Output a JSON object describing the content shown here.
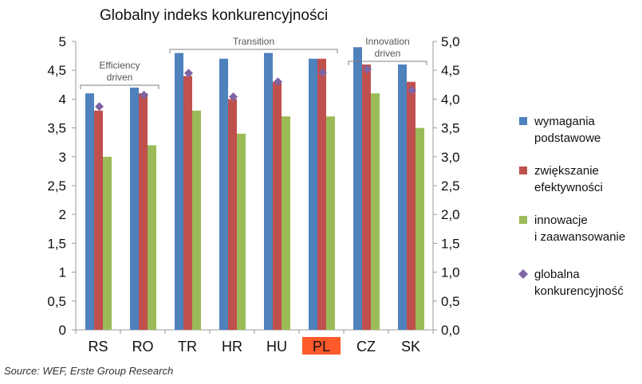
{
  "chart_data": {
    "type": "bar",
    "title": "Globalny indeks konkurencyjności",
    "categories": [
      "RS",
      "RO",
      "TR",
      "HR",
      "HU",
      "PL",
      "CZ",
      "SK"
    ],
    "highlight_category": "PL",
    "highlight_color": "#ff5a2a",
    "series": [
      {
        "name": "wymagania podstawowe",
        "name_lines": [
          "wymagania",
          "podstawowe"
        ],
        "color": "#4f81bd",
        "type": "bar",
        "values": [
          4.1,
          4.2,
          4.8,
          4.7,
          4.8,
          4.7,
          4.9,
          4.6
        ]
      },
      {
        "name": "zwiększanie efektywności",
        "name_lines": [
          "zwiększanie",
          "efektywności"
        ],
        "color": "#c0504d",
        "type": "bar",
        "values": [
          3.8,
          4.1,
          4.4,
          4.0,
          4.3,
          4.7,
          4.6,
          4.3
        ]
      },
      {
        "name": "innowacje i zaawansowanie",
        "name_lines": [
          "innowacje",
          "i zaawansowanie"
        ],
        "color": "#9bbb59",
        "type": "bar",
        "values": [
          3.0,
          3.2,
          3.8,
          3.4,
          3.7,
          3.7,
          4.1,
          3.5
        ]
      },
      {
        "name": "globalna konkurencyjność",
        "name_lines": [
          "globalna",
          " konkurencyjność"
        ],
        "color": "#8064a2",
        "type": "marker",
        "values": [
          3.87,
          4.07,
          4.45,
          4.04,
          4.3,
          4.46,
          4.52,
          4.15
        ]
      }
    ],
    "ylim": [
      0,
      5
    ],
    "y_ticks_left": [
      "0",
      "0,5",
      "1",
      "1,5",
      "2",
      "2,5",
      "3",
      "3,5",
      "4",
      "4,5",
      "5"
    ],
    "y_ticks_right": [
      "0,0",
      "0,5",
      "1,0",
      "1,5",
      "2,0",
      "2,5",
      "3,0",
      "3,5",
      "4,0",
      "4,5",
      "5,0"
    ],
    "grid": false,
    "legend_position": "right",
    "annotations": [
      {
        "lines": [
          "Efficiency",
          "driven"
        ],
        "from": "RS",
        "to": "RO"
      },
      {
        "lines": [
          "Transition"
        ],
        "from": "TR",
        "to": "PL"
      },
      {
        "lines": [
          "Innovation",
          "driven"
        ],
        "from": "CZ",
        "to": "SK"
      }
    ]
  },
  "source": "Source: WEF, Erste Group Research"
}
